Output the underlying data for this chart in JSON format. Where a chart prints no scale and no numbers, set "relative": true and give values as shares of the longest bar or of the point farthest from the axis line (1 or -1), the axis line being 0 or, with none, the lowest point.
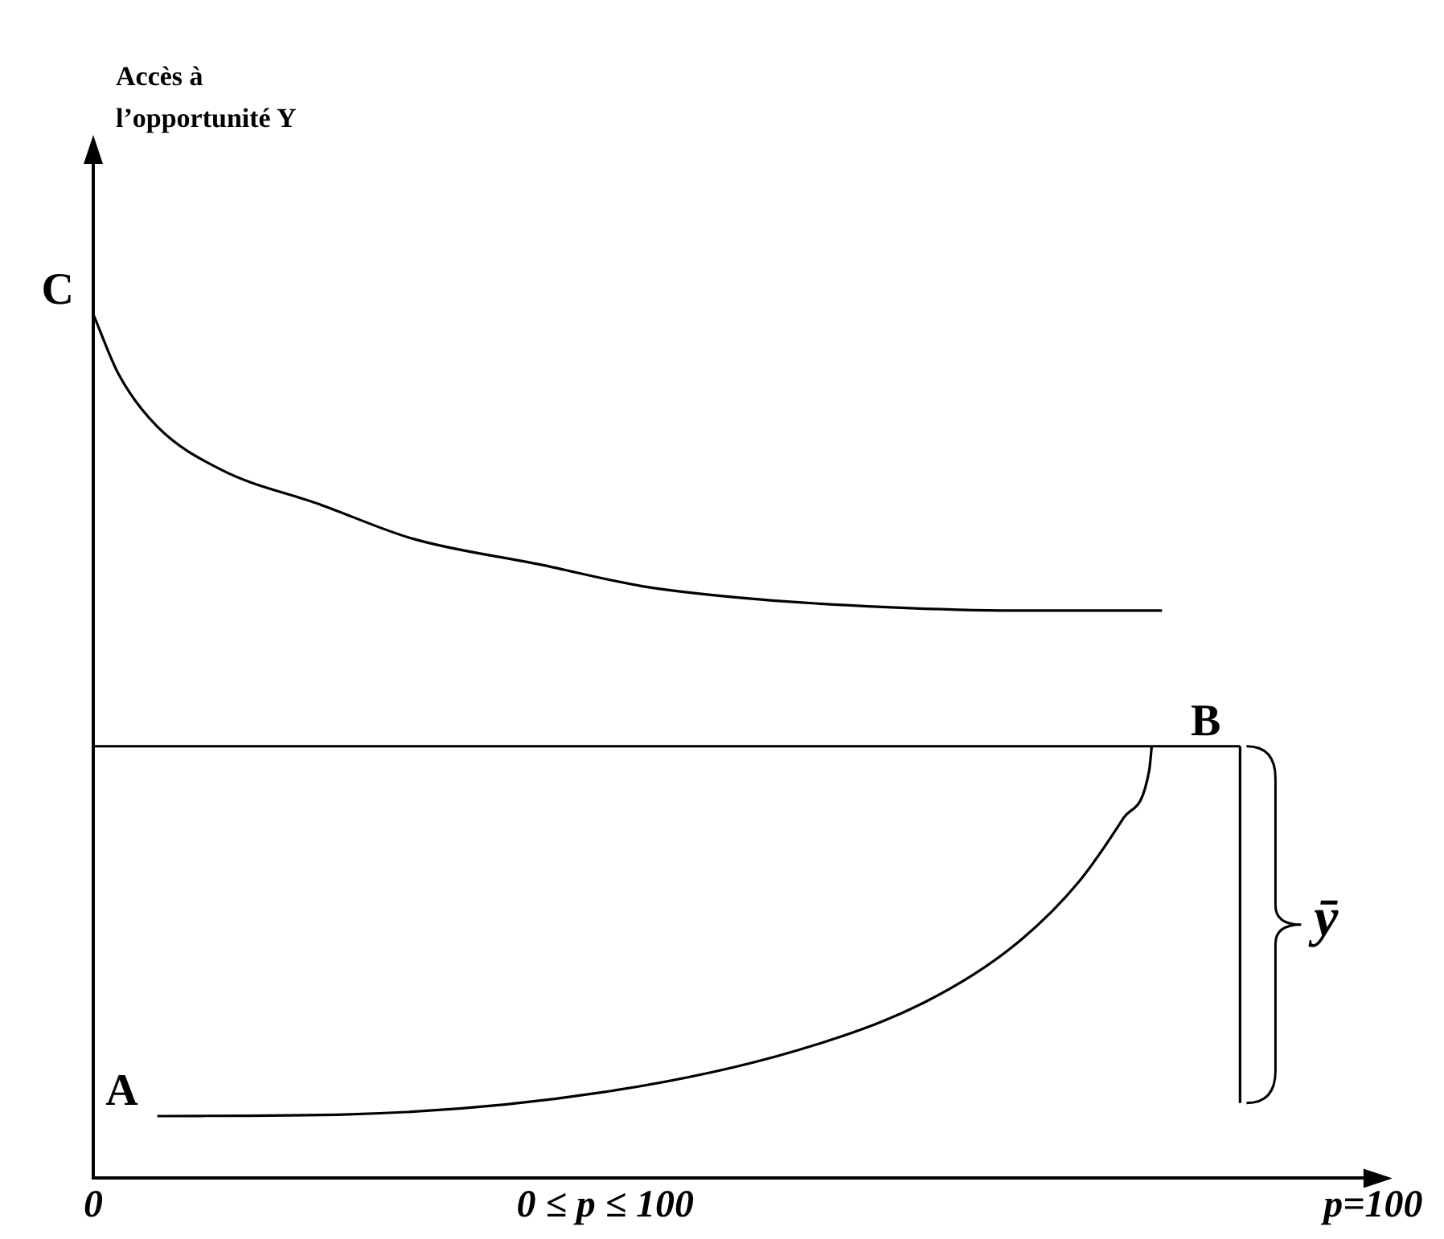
{
  "chart_data": {
    "type": "line",
    "relative": true,
    "xlim": [
      0,
      101
    ],
    "xticks": [
      {
        "value": 0,
        "label": "0"
      },
      {
        "value": 40,
        "label": "0 ≤ p ≤ 100"
      },
      {
        "value": 100,
        "label": "p=100"
      }
    ],
    "grid": false,
    "legend": false,
    "marker": "none",
    "line_style": "solid",
    "series": [
      {
        "color": "#000000",
        "x": [
          0,
          2,
          5,
          10,
          17.7,
          25,
          35,
          43,
          52,
          62,
          72,
          83.5
        ],
        "values": [
          1.0,
          0.93,
          0.87,
          0.82,
          0.78,
          0.74,
          0.71,
          0.685,
          0.67,
          0.661,
          0.657,
          0.657
        ]
      },
      {
        "color": "#000000",
        "x": [
          0,
          89.6
        ],
        "values": [
          0.5,
          0.5
        ]
      },
      {
        "color": "#000000",
        "x": [
          5,
          20,
          40,
          55,
          65,
          72,
          77,
          80.5,
          82.5,
          82.7
        ],
        "values": [
          0.072,
          0.074,
          0.1,
          0.148,
          0.204,
          0.27,
          0.343,
          0.417,
          0.472,
          0.5
        ]
      },
      {
        "color": "#000000",
        "x": [
          89.6,
          89.6
        ],
        "values": [
          0.5,
          0.087
        ]
      }
    ],
    "annotations": [
      "Accès à\nl’opportunité Y",
      {
        "text": "C",
        "x": 0,
        "y": 1
      },
      {
        "text": "B",
        "x": 89.6,
        "y": 0.5
      },
      {
        "text": "A",
        "x": 5,
        "y": 0.072
      },
      "ȳ"
    ]
  }
}
